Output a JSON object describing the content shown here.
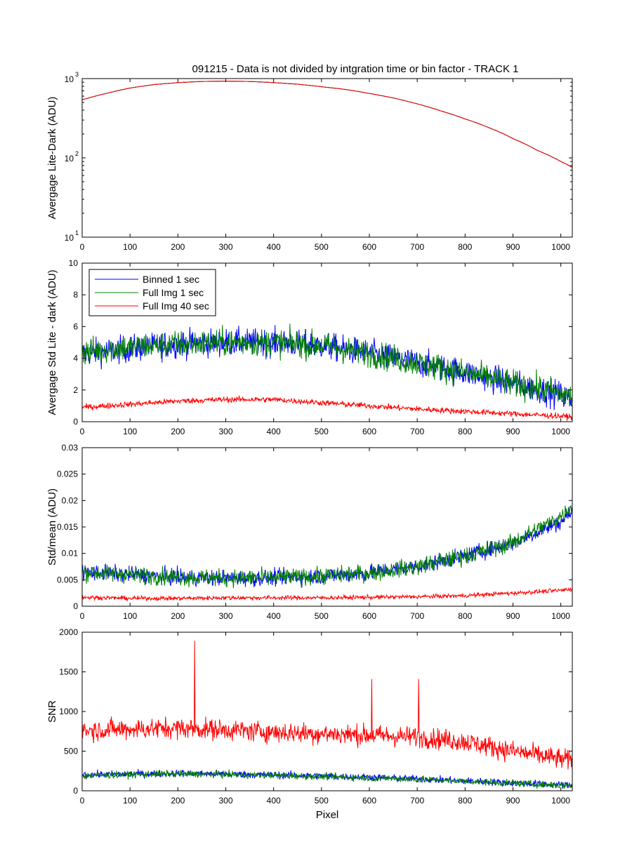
{
  "figure": {
    "title": "091215 - Data is not divided by intgration time or bin factor - TRACK 1",
    "xlabel": "Pixel"
  },
  "chart_data": [
    {
      "type": "line",
      "ylabel": "Avergage Lite-Dark (ADU)",
      "yscale": "log",
      "xlim": [
        0,
        1024
      ],
      "ylim": [
        10,
        1000
      ],
      "xticks": [
        0,
        100,
        200,
        300,
        400,
        500,
        600,
        700,
        800,
        900,
        1000
      ],
      "yticks": [
        {
          "value": 10,
          "base": "10",
          "exp": "1"
        },
        {
          "value": 100,
          "base": "10",
          "exp": "2"
        },
        {
          "value": 1000,
          "base": "10",
          "exp": "3"
        }
      ],
      "series": [
        {
          "color": "#0000ff",
          "x": [
            0,
            50,
            100,
            150,
            200,
            250,
            300,
            350,
            400,
            450,
            500,
            550,
            600,
            650,
            700,
            750,
            800,
            850,
            900,
            950,
            1000,
            1024
          ],
          "values": [
            540,
            650,
            760,
            840,
            890,
            920,
            930,
            920,
            890,
            850,
            790,
            730,
            650,
            570,
            480,
            390,
            310,
            240,
            175,
            125,
            90,
            76
          ]
        },
        {
          "color": "#008000",
          "x": [
            0,
            50,
            100,
            150,
            200,
            250,
            300,
            350,
            400,
            450,
            500,
            550,
            600,
            650,
            700,
            750,
            800,
            850,
            900,
            950,
            1000,
            1024
          ],
          "values": [
            540,
            650,
            760,
            840,
            890,
            920,
            930,
            920,
            890,
            850,
            790,
            730,
            650,
            570,
            480,
            390,
            310,
            240,
            175,
            125,
            90,
            76
          ]
        },
        {
          "color": "#ff0000",
          "x": [
            0,
            50,
            100,
            150,
            200,
            250,
            300,
            350,
            400,
            450,
            500,
            550,
            600,
            650,
            700,
            750,
            800,
            850,
            900,
            950,
            1000,
            1024
          ],
          "values": [
            540,
            650,
            760,
            840,
            890,
            920,
            930,
            920,
            890,
            850,
            790,
            730,
            650,
            570,
            480,
            390,
            310,
            240,
            175,
            125,
            90,
            76
          ]
        }
      ]
    },
    {
      "type": "line",
      "ylabel": "Avergage Std Lite - dark (ADU)",
      "xlim": [
        0,
        1024
      ],
      "ylim": [
        0,
        10
      ],
      "xticks": [
        0,
        100,
        200,
        300,
        400,
        500,
        600,
        700,
        800,
        900,
        1000
      ],
      "yticks": [
        0,
        2,
        4,
        6,
        8,
        10
      ],
      "legend": {
        "position": "top-left"
      },
      "series": [
        {
          "name": "Binned 1 sec",
          "color": "#0000ff",
          "x": [
            0,
            100,
            200,
            300,
            400,
            500,
            600,
            700,
            800,
            900,
            1000,
            1024
          ],
          "values": [
            4.3,
            4.6,
            4.9,
            5.0,
            5.0,
            4.8,
            4.3,
            3.7,
            3.1,
            2.4,
            1.7,
            1.4
          ],
          "noise": 0.85
        },
        {
          "name": "Full Img 1 sec",
          "color": "#008000",
          "x": [
            0,
            100,
            200,
            300,
            400,
            500,
            600,
            700,
            800,
            900,
            1000,
            1024
          ],
          "values": [
            4.4,
            4.7,
            4.9,
            5.0,
            5.0,
            4.8,
            4.3,
            3.7,
            3.1,
            2.4,
            1.8,
            1.5
          ],
          "noise": 0.85
        },
        {
          "name": "Full Img 40 sec",
          "color": "#ff0000",
          "x": [
            0,
            100,
            200,
            300,
            400,
            500,
            600,
            700,
            800,
            900,
            1000,
            1024
          ],
          "values": [
            0.9,
            1.1,
            1.3,
            1.4,
            1.4,
            1.2,
            1.0,
            0.8,
            0.65,
            0.5,
            0.35,
            0.3
          ],
          "noise": 0.18
        }
      ]
    },
    {
      "type": "line",
      "ylabel": "Std/mean (ADU)",
      "xlim": [
        0,
        1024
      ],
      "ylim": [
        0,
        0.03
      ],
      "xticks": [
        0,
        100,
        200,
        300,
        400,
        500,
        600,
        700,
        800,
        900,
        1000
      ],
      "yticks": [
        0,
        0.005,
        0.01,
        0.015,
        0.02,
        0.025,
        0.03
      ],
      "series": [
        {
          "color": "#0000ff",
          "x": [
            0,
            100,
            200,
            300,
            400,
            500,
            600,
            700,
            800,
            900,
            1000,
            1024
          ],
          "values": [
            0.0065,
            0.006,
            0.0055,
            0.0053,
            0.0054,
            0.0057,
            0.0063,
            0.0075,
            0.0095,
            0.012,
            0.016,
            0.018
          ],
          "noise": 0.0015
        },
        {
          "color": "#008000",
          "x": [
            0,
            100,
            200,
            300,
            400,
            500,
            600,
            700,
            800,
            900,
            1000,
            1024
          ],
          "values": [
            0.0065,
            0.006,
            0.0055,
            0.0053,
            0.0054,
            0.0057,
            0.0063,
            0.0075,
            0.0095,
            0.012,
            0.017,
            0.019
          ],
          "noise": 0.0016
        },
        {
          "color": "#ff0000",
          "x": [
            0,
            100,
            200,
            300,
            400,
            500,
            600,
            700,
            800,
            900,
            1000,
            1024
          ],
          "values": [
            0.0017,
            0.0015,
            0.0015,
            0.0016,
            0.0016,
            0.0016,
            0.0017,
            0.0018,
            0.002,
            0.0025,
            0.003,
            0.0033
          ],
          "noise": 0.0004
        }
      ]
    },
    {
      "type": "line",
      "ylabel": "SNR",
      "xlim": [
        0,
        1024
      ],
      "ylim": [
        0,
        2000
      ],
      "xticks": [
        0,
        100,
        200,
        300,
        400,
        500,
        600,
        700,
        800,
        900,
        1000
      ],
      "yticks": [
        0,
        500,
        1000,
        1500,
        2000
      ],
      "series": [
        {
          "color": "#ff0000",
          "x": [
            0,
            100,
            200,
            300,
            400,
            500,
            600,
            700,
            800,
            900,
            1000,
            1024
          ],
          "values": [
            760,
            780,
            790,
            770,
            740,
            720,
            700,
            680,
            620,
            500,
            400,
            380
          ],
          "noise": 130,
          "spikes": [
            {
              "x": 235,
              "y": 1890
            },
            {
              "x": 605,
              "y": 1410
            },
            {
              "x": 703,
              "y": 1410
            }
          ]
        },
        {
          "color": "#0000ff",
          "x": [
            0,
            100,
            200,
            300,
            400,
            500,
            600,
            700,
            800,
            900,
            1000,
            1024
          ],
          "values": [
            200,
            210,
            220,
            210,
            200,
            185,
            170,
            150,
            125,
            100,
            75,
            70
          ],
          "noise": 45
        },
        {
          "color": "#008000",
          "x": [
            0,
            100,
            200,
            300,
            400,
            500,
            600,
            700,
            800,
            900,
            1000,
            1024
          ],
          "values": [
            190,
            205,
            215,
            205,
            195,
            180,
            165,
            145,
            120,
            95,
            70,
            65
          ],
          "noise": 42
        }
      ]
    }
  ]
}
